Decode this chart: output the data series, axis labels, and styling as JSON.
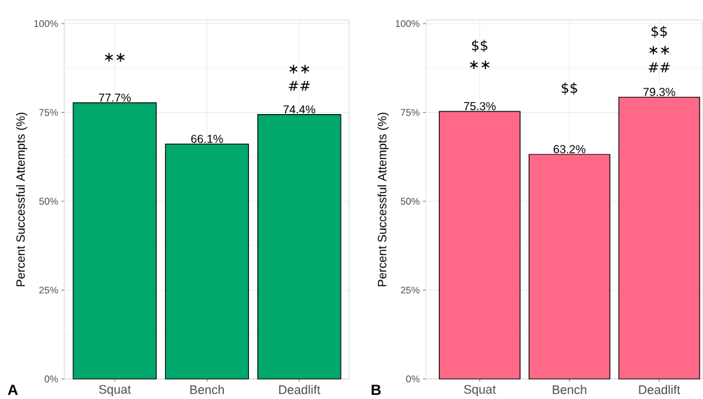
{
  "chart_data": [
    {
      "type": "bar",
      "categories": [
        "Squat",
        "Bench",
        "Deadlift"
      ],
      "values": [
        77.7,
        66.1,
        74.4
      ],
      "value_labels": [
        "77.7%",
        "66.1%",
        "74.4%"
      ],
      "color": "#00a86b",
      "ylabel": "Percent Successful Attempts (%)",
      "ylim": [
        0,
        101
      ],
      "yticks": [
        {
          "value": 0,
          "label": "0%"
        },
        {
          "value": 12.5,
          "label": null
        },
        {
          "value": 25,
          "label": "25%"
        },
        {
          "value": 37.5,
          "label": null
        },
        {
          "value": 50,
          "label": "50%"
        },
        {
          "value": 62.5,
          "label": null
        },
        {
          "value": 75,
          "label": "75%"
        },
        {
          "value": 87.5,
          "label": null
        },
        {
          "value": 100,
          "label": "100%"
        }
      ],
      "grid": true,
      "annotations": [
        "A",
        "∗∗",
        "∗∗",
        "##"
      ]
    },
    {
      "type": "bar",
      "categories": [
        "Squat",
        "Bench",
        "Deadlift"
      ],
      "values": [
        75.3,
        63.2,
        79.3
      ],
      "value_labels": [
        "75.3%",
        "63.2%",
        "79.3%"
      ],
      "color": "#ff6987",
      "ylabel": "Percent Successful Attempts (%)",
      "ylim": [
        0,
        101
      ],
      "yticks": [
        {
          "value": 0,
          "label": "0%"
        },
        {
          "value": 12.5,
          "label": null
        },
        {
          "value": 25,
          "label": "25%"
        },
        {
          "value": 37.5,
          "label": null
        },
        {
          "value": 50,
          "label": "50%"
        },
        {
          "value": 62.5,
          "label": null
        },
        {
          "value": 75,
          "label": "75%"
        },
        {
          "value": 87.5,
          "label": null
        },
        {
          "value": 100,
          "label": "100%"
        }
      ],
      "grid": true,
      "annotations": [
        "B",
        "$$",
        "∗∗",
        "$$",
        "$$",
        "∗∗",
        "##"
      ]
    }
  ]
}
